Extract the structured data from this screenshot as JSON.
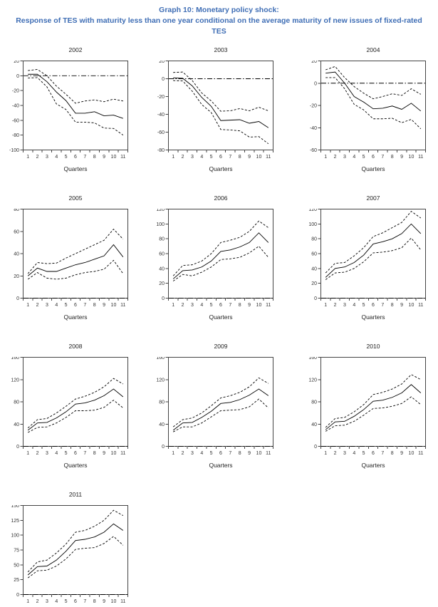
{
  "header": {
    "line1": "Graph 10:  Monetary policy shock:",
    "line2": "Response of TES with maturity less than one year conditional on the average maturity of new issues of fixed-rated",
    "line3": "TES",
    "color": "#3f6eb5"
  },
  "xlabel": "Quarters",
  "x_ticks": [
    "1",
    "2",
    "3",
    "4",
    "5",
    "6",
    "7",
    "8",
    "9",
    "10",
    "11"
  ],
  "line_color": "#000000",
  "chart_data": [
    {
      "type": "line",
      "title": "2002",
      "ylim": [
        -100,
        20
      ],
      "ystep": 20,
      "x": [
        1,
        2,
        3,
        4,
        5,
        6,
        7,
        8,
        9,
        10,
        11
      ],
      "zero_line": true,
      "series": [
        {
          "name": "upper_band",
          "style": "dashed",
          "values": [
            7,
            8.5,
            0,
            -14,
            -25,
            -37,
            -34,
            -32.5,
            -35,
            -31.5,
            -34
          ]
        },
        {
          "name": "response",
          "style": "solid",
          "values": [
            2,
            2,
            -8,
            -22,
            -33.5,
            -50.5,
            -50.5,
            -48.5,
            -54,
            -53,
            -57.5
          ]
        },
        {
          "name": "lower_band",
          "style": "dashed",
          "values": [
            -3,
            -2.5,
            -15,
            -38,
            -45.5,
            -62.5,
            -62.5,
            -63.5,
            -70.5,
            -71,
            -80
          ]
        }
      ]
    },
    {
      "type": "line",
      "title": "2003",
      "ylim": [
        -80,
        20
      ],
      "ystep": 20,
      "x": [
        1,
        2,
        3,
        4,
        5,
        6,
        7,
        8,
        9,
        10,
        11
      ],
      "zero_line": true,
      "series": [
        {
          "name": "upper_band",
          "style": "dashed",
          "values": [
            7,
            7.5,
            -2,
            -16,
            -25,
            -36.5,
            -36,
            -33.5,
            -36,
            -32,
            -36
          ]
        },
        {
          "name": "response",
          "style": "solid",
          "values": [
            1,
            0.5,
            -8,
            -21,
            -31,
            -47,
            -46.5,
            -46,
            -50,
            -48,
            -55
          ]
        },
        {
          "name": "lower_band",
          "style": "dashed",
          "values": [
            -2,
            -2.5,
            -14,
            -29,
            -38,
            -57,
            -57.5,
            -58.5,
            -65.5,
            -65,
            -73
          ]
        }
      ]
    },
    {
      "type": "line",
      "title": "2004",
      "ylim": [
        -60,
        20
      ],
      "ystep": 20,
      "x": [
        1,
        2,
        3,
        4,
        5,
        6,
        7,
        8,
        9,
        10,
        11
      ],
      "zero_line": true,
      "series": [
        {
          "name": "upper_band",
          "style": "dashed",
          "values": [
            12,
            15,
            5,
            -3,
            -9,
            -14,
            -12,
            -9.5,
            -11,
            -5,
            -10
          ]
        },
        {
          "name": "response",
          "style": "solid",
          "values": [
            9,
            10,
            0,
            -12,
            -17,
            -23,
            -22.5,
            -20.5,
            -23.5,
            -18,
            -25
          ]
        },
        {
          "name": "lower_band",
          "style": "dashed",
          "values": [
            5,
            5,
            -5,
            -19,
            -24,
            -32,
            -32,
            -31.5,
            -35.5,
            -32.5,
            -41
          ]
        }
      ]
    },
    {
      "type": "line",
      "title": "2005",
      "ylim": [
        0,
        80
      ],
      "ystep": 20,
      "x": [
        1,
        2,
        3,
        4,
        5,
        6,
        7,
        8,
        9,
        10,
        11
      ],
      "zero_line": true,
      "series": [
        {
          "name": "upper_band",
          "style": "dashed",
          "values": [
            22,
            32,
            31,
            31.5,
            36,
            40,
            44,
            48,
            52,
            62,
            53
          ]
        },
        {
          "name": "response",
          "style": "solid",
          "values": [
            20,
            27,
            24,
            24,
            27,
            30,
            32,
            35,
            38,
            48,
            37
          ]
        },
        {
          "name": "lower_band",
          "style": "dashed",
          "values": [
            17,
            23,
            18,
            17,
            18,
            21,
            23,
            24,
            26,
            34,
            22
          ]
        }
      ]
    },
    {
      "type": "line",
      "title": "2006",
      "ylim": [
        0,
        120
      ],
      "ystep": 20,
      "x": [
        1,
        2,
        3,
        4,
        5,
        6,
        7,
        8,
        9,
        10,
        11
      ],
      "zero_line": true,
      "series": [
        {
          "name": "upper_band",
          "style": "dashed",
          "values": [
            30,
            44,
            45,
            50,
            60,
            75,
            78,
            82,
            90,
            104,
            95
          ]
        },
        {
          "name": "response",
          "style": "solid",
          "values": [
            26,
            37,
            38,
            42,
            50,
            63,
            65,
            69,
            75,
            88,
            75
          ]
        },
        {
          "name": "lower_band",
          "style": "dashed",
          "values": [
            23,
            32,
            30,
            35,
            42,
            52,
            53,
            55,
            61,
            70,
            55
          ]
        }
      ]
    },
    {
      "type": "line",
      "title": "2007",
      "ylim": [
        0,
        120
      ],
      "ystep": 20,
      "x": [
        1,
        2,
        3,
        4,
        5,
        6,
        7,
        8,
        9,
        10,
        11
      ],
      "zero_line": true,
      "series": [
        {
          "name": "upper_band",
          "style": "dashed",
          "values": [
            34,
            47,
            48,
            57,
            68,
            83,
            88,
            95,
            102,
            117,
            108
          ]
        },
        {
          "name": "response",
          "style": "solid",
          "values": [
            28,
            40,
            42,
            48,
            58,
            73,
            76,
            80,
            87,
            100,
            87
          ]
        },
        {
          "name": "lower_band",
          "style": "dashed",
          "values": [
            25,
            34,
            35,
            40,
            49,
            61,
            62,
            64,
            68,
            81,
            65
          ]
        }
      ]
    },
    {
      "type": "line",
      "title": "2008",
      "ylim": [
        0,
        160
      ],
      "ystep": 40,
      "x": [
        1,
        2,
        3,
        4,
        5,
        6,
        7,
        8,
        9,
        10,
        11
      ],
      "zero_line": true,
      "series": [
        {
          "name": "upper_band",
          "style": "dashed",
          "values": [
            33,
            48,
            50,
            60,
            72,
            85,
            90,
            97,
            107,
            122,
            112
          ]
        },
        {
          "name": "response",
          "style": "solid",
          "values": [
            29,
            42,
            43,
            51,
            62,
            76,
            78,
            83,
            91,
            103,
            89
          ]
        },
        {
          "name": "lower_band",
          "style": "dashed",
          "values": [
            25,
            34,
            35,
            42,
            52,
            64,
            64,
            65,
            70,
            83,
            69
          ]
        }
      ]
    },
    {
      "type": "line",
      "title": "2009",
      "ylim": [
        0,
        160
      ],
      "ystep": 40,
      "x": [
        1,
        2,
        3,
        4,
        5,
        6,
        7,
        8,
        9,
        10,
        11
      ],
      "zero_line": true,
      "series": [
        {
          "name": "upper_band",
          "style": "dashed",
          "values": [
            35,
            48,
            51,
            60,
            73,
            87,
            91,
            97,
            107,
            123,
            113
          ]
        },
        {
          "name": "response",
          "style": "solid",
          "values": [
            29,
            42,
            43,
            52,
            63,
            77,
            79,
            84,
            92,
            103,
            91
          ]
        },
        {
          "name": "lower_band",
          "style": "dashed",
          "values": [
            26,
            35,
            35,
            42,
            53,
            64,
            65,
            66,
            71,
            85,
            69
          ]
        }
      ]
    },
    {
      "type": "line",
      "title": "2010",
      "ylim": [
        0,
        160
      ],
      "ystep": 40,
      "x": [
        1,
        2,
        3,
        4,
        5,
        6,
        7,
        8,
        9,
        10,
        11
      ],
      "zero_line": true,
      "series": [
        {
          "name": "upper_band",
          "style": "dashed",
          "values": [
            34,
            50,
            52,
            62,
            75,
            93,
            97,
            103,
            112,
            129,
            120
          ]
        },
        {
          "name": "response",
          "style": "solid",
          "values": [
            30,
            44,
            45,
            54,
            66,
            81,
            83,
            88,
            96,
            111,
            96
          ]
        },
        {
          "name": "lower_band",
          "style": "dashed",
          "values": [
            27,
            37,
            38,
            45,
            56,
            68,
            69,
            72,
            77,
            89,
            75
          ]
        }
      ]
    },
    {
      "type": "line",
      "title": "2011",
      "ylim": [
        0,
        150
      ],
      "ystep": 25,
      "x": [
        1,
        2,
        3,
        4,
        5,
        6,
        7,
        8,
        9,
        10,
        11
      ],
      "zero_line": true,
      "series": [
        {
          "name": "upper_band",
          "style": "dashed",
          "values": [
            38,
            55,
            58,
            70,
            85,
            105,
            108,
            115,
            125,
            142,
            133
          ]
        },
        {
          "name": "response",
          "style": "solid",
          "values": [
            33,
            47,
            48,
            58,
            73,
            91,
            93,
            97,
            105,
            119,
            108
          ]
        },
        {
          "name": "lower_band",
          "style": "dashed",
          "values": [
            28,
            40,
            41,
            48,
            60,
            76,
            78,
            79,
            86,
            98,
            83
          ]
        }
      ]
    }
  ]
}
